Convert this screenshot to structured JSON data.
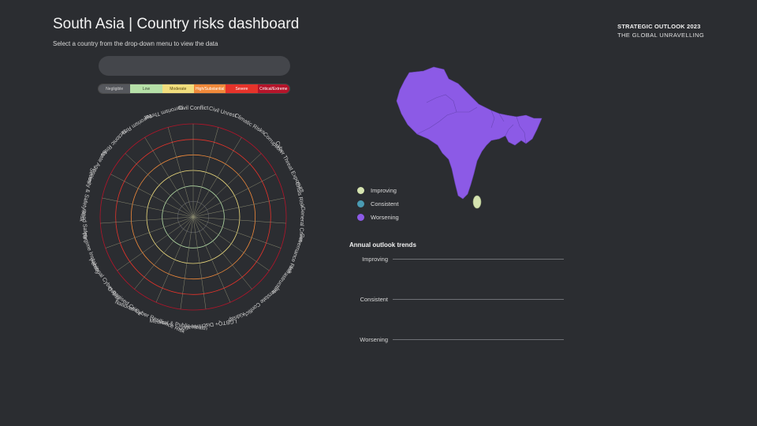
{
  "header": {
    "title": "South Asia | Country risks dashboard",
    "subtitle": "Select a country from the drop-down menu to view the data",
    "brand_line1": "STRATEGIC OUTLOOK 2023",
    "brand_line2": "THE GLOBAL UNRAVELLING"
  },
  "dropdown": {
    "value": ""
  },
  "scale": [
    {
      "label": "Negligible",
      "bg": "#55575c",
      "fg": "#d0d0d0"
    },
    {
      "label": "Low",
      "bg": "#b6e0a8",
      "fg": "#3a4a34"
    },
    {
      "label": "Moderate",
      "bg": "#f1de7e",
      "fg": "#5a4a10"
    },
    {
      "label": "High/Substantial",
      "bg": "#f0893a",
      "fg": "#ffffff"
    },
    {
      "label": "Severe",
      "bg": "#e6332a",
      "fg": "#ffffff"
    },
    {
      "label": "Critical/Extreme",
      "bg": "#b5142a",
      "fg": "#ffffff"
    }
  ],
  "radar": {
    "categories": [
      "Civil Conflict",
      "Civil Unrest",
      "Climatic Risks",
      "Corruption",
      "Cyber Threat Exposure",
      "Crisis Risk",
      "General Crime",
      "Governance Risk",
      "Infrastructure",
      "Interstate Conflict",
      "Kidnap",
      "LGBTQ+ Discrimination",
      "Medical & Public Health",
      "National Cyber Resilience Risk",
      "Organised Crime",
      "Personal Cyber Risk",
      "Regime Instability",
      "Road Safety",
      "Security & Safety Risk",
      "State Agencies",
      "Tectonic Risks",
      "Terrorism Risk",
      "Terrorism Threat"
    ],
    "ring_colors": [
      "#55575c",
      "#b6e0a8",
      "#f1de7e",
      "#f0893a",
      "#e6332a",
      "#b5142a"
    ]
  },
  "map": {
    "fill_color": "#8c5ae6",
    "sri_lanka_color": "#d5e3b0"
  },
  "legend": [
    {
      "label": "Improving",
      "color": "#d5e3b0"
    },
    {
      "label": "Consistent",
      "color": "#4a9bb3"
    },
    {
      "label": "Worsening",
      "color": "#8c5ae6"
    }
  ],
  "trends": {
    "title": "Annual outlook trends",
    "rows": [
      "Improving",
      "Consistent",
      "Worsening"
    ]
  }
}
